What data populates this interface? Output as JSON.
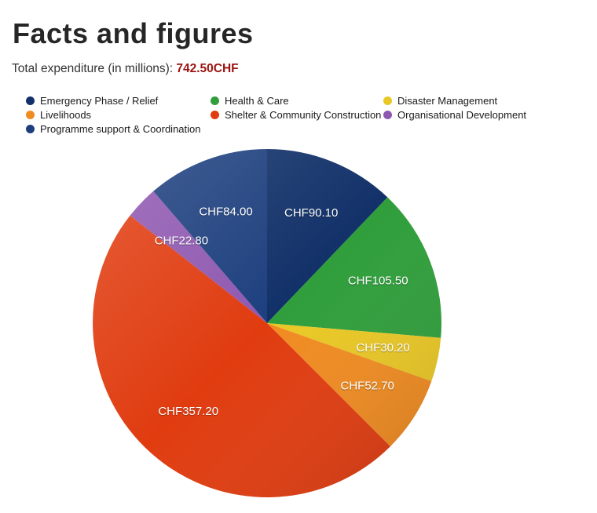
{
  "page": {
    "title": "Facts and figures",
    "subtitle_label": "Total expenditure (in millions):",
    "subtitle_value": "742.50CHF"
  },
  "chart_data": {
    "type": "pie",
    "title": "Facts and figures",
    "total_label": "Total expenditure (in millions)",
    "total": 742.5,
    "currency": "CHF",
    "start_angle_deg": 0,
    "direction": "clockwise",
    "legend_position": "top",
    "slices": [
      {
        "label": "Emergency Phase / Relief",
        "value": 90.1,
        "display": "CHF90.10",
        "color": "#123169"
      },
      {
        "label": "Health & Care",
        "value": 105.5,
        "display": "CHF105.50",
        "color": "#2f9e3b"
      },
      {
        "label": "Disaster Management",
        "value": 30.2,
        "display": "CHF30.20",
        "color": "#e9c724"
      },
      {
        "label": "Livelihoods",
        "value": 52.7,
        "display": "CHF52.70",
        "color": "#f08b20"
      },
      {
        "label": "Shelter & Community Construction",
        "value": 357.2,
        "display": "CHF357.20",
        "color": "#e03c10"
      },
      {
        "label": "Organisational Development",
        "value": 22.8,
        "display": "CHF22.80",
        "color": "#8f58b0"
      },
      {
        "label": "Programme support & Coordination",
        "value": 84.0,
        "display": "CHF84.00",
        "color": "#1d3f7e"
      }
    ]
  }
}
